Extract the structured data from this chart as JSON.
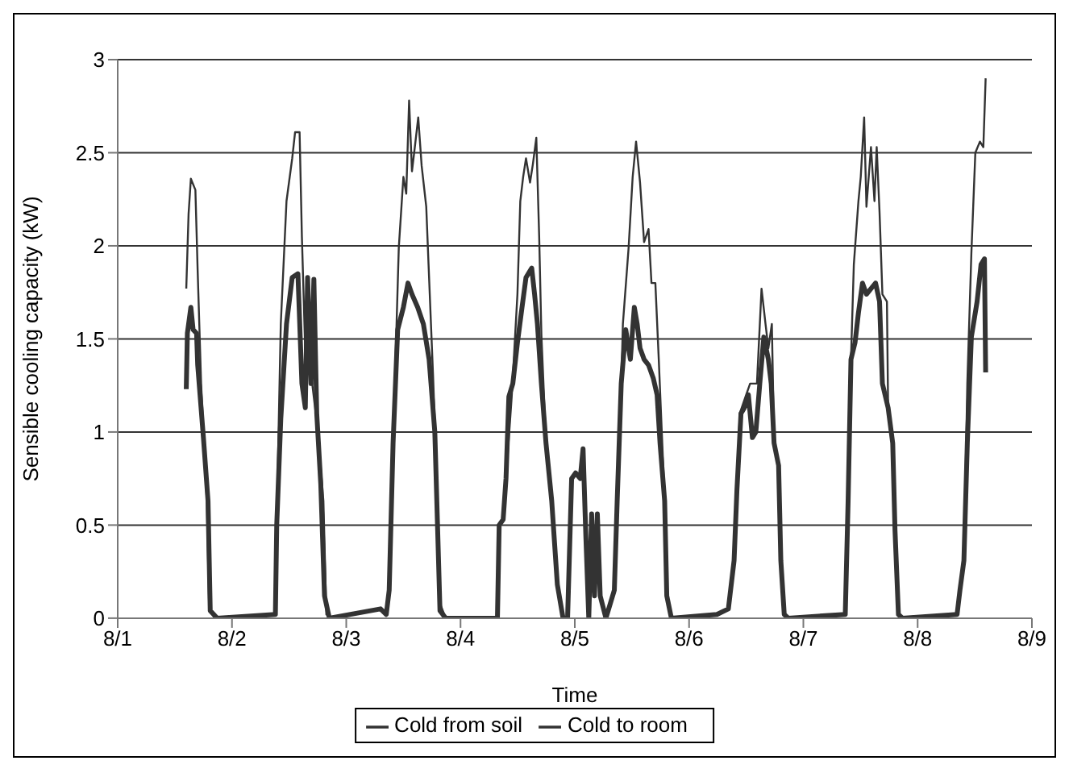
{
  "chart_data": {
    "type": "line",
    "xlabel": "Time",
    "ylabel": "Sensible cooling capacity (kW)",
    "xlim": [
      "--08-01",
      "--08-09"
    ],
    "xticks": [
      {
        "value": "--08-01",
        "label": "8/1"
      },
      {
        "value": "--08-02",
        "label": "8/2"
      },
      {
        "value": "--08-03",
        "label": "8/3"
      },
      {
        "value": "--08-04",
        "label": "8/4"
      },
      {
        "value": "--08-05",
        "label": "8/5"
      },
      {
        "value": "--08-06",
        "label": "8/6"
      },
      {
        "value": "--08-07",
        "label": "8/7"
      },
      {
        "value": "--08-08",
        "label": "8/8"
      },
      {
        "value": "--08-09",
        "label": "8/9"
      }
    ],
    "ylim": [
      0,
      3
    ],
    "yticks": [
      0,
      0.5,
      1,
      1.5,
      2,
      2.5,
      3
    ],
    "grid": "y",
    "legend": "bottom",
    "marker": "none",
    "line_style": "solid",
    "series": [
      {
        "name": "Cold from soil",
        "color": "#333333",
        "x": [
          "--08-01T14:24",
          "--08-01T14:53",
          "--08-01T15:22",
          "--08-01T16:19",
          "--08-01T16:48",
          "--08-01T17:31",
          "--08-01T18:43",
          "--08-01T19:12",
          "--08-01T20:24",
          "--08-02T09:07",
          "--08-02T09:24",
          "--08-02T10:15",
          "--08-02T11:27",
          "--08-02T12:39",
          "--08-02T13:15",
          "--08-02T14:12",
          "--08-02T14:41",
          "--08-02T15:24",
          "--08-02T16:51",
          "--08-02T18:03",
          "--08-02T19:12",
          "--08-02T19:49",
          "--08-02T21:01",
          "--08-03T07:12",
          "--08-03T08:24",
          "--08-03T09:01",
          "--08-03T10:12",
          "--08-03T11:02",
          "--08-03T12:00",
          "--08-03T12:36",
          "--08-03T13:12",
          "--08-03T13:48",
          "--08-03T14:24",
          "--08-03T15:07",
          "--08-03T15:50",
          "--08-03T16:48",
          "--08-03T17:17",
          "--08-03T18:14",
          "--08-03T18:58",
          "--08-03T19:41",
          "--08-03T20:53",
          "--08-04T07:45",
          "--08-04T08:07",
          "--08-04T08:57",
          "--08-04T10:45",
          "--08-04T11:57",
          "--08-04T12:33",
          "--08-04T13:09",
          "--08-04T13:45",
          "--08-04T14:36",
          "--08-04T15:12",
          "--08-04T15:55",
          "--08-04T16:31",
          "--08-04T16:59",
          "--08-04T17:57",
          "--08-04T19:09",
          "--08-04T20:20",
          "--08-04T21:32",
          "--08-04T22:29",
          "--08-04T23:20",
          "--08-05T00:10",
          "--08-05T01:08",
          "--08-05T01:44",
          "--08-05T02:20",
          "--08-05T02:56",
          "--08-05T03:32",
          "--08-05T04:08",
          "--08-05T04:44",
          "--08-05T05:20",
          "--08-05T06:32",
          "--08-05T08:18",
          "--08-05T08:54",
          "--08-05T09:45",
          "--08-05T10:06",
          "--08-05T11:18",
          "--08-05T12:09",
          "--08-05T12:52",
          "--08-05T13:42",
          "--08-05T14:33",
          "--08-05T15:29",
          "--08-05T16:06",
          "--08-05T16:55",
          "--08-05T17:38",
          "--08-05T18:52",
          "--08-05T19:19",
          "--08-05T20:17",
          "--08-06T05:51",
          "--08-06T08:15",
          "--08-06T09:27",
          "--08-06T10:03",
          "--08-06T10:39",
          "--08-06T11:51",
          "--08-06T12:49",
          "--08-06T14:15",
          "--08-06T15:13",
          "--08-06T16:03",
          "--08-06T16:39",
          "--08-06T17:23",
          "--08-06T17:51",
          "--08-06T18:48",
          "--08-06T19:16",
          "--08-06T19:59",
          "--08-06T20:50",
          "--08-07T08:48",
          "--08-07T09:24",
          "--08-07T10:00",
          "--08-07T10:36",
          "--08-07T11:34",
          "--08-07T12:03",
          "--08-07T12:46",
          "--08-07T13:15",
          "--08-07T14:12",
          "--08-07T14:56",
          "--08-07T15:24",
          "--08-07T16:00",
          "--08-07T16:36",
          "--08-07T17:33",
          "--08-07T17:48",
          "--08-07T18:46",
          "--08-07T19:15",
          "--08-07T19:58",
          "--08-07T20:48",
          "--08-08T08:17",
          "--08-08T08:53",
          "--08-08T09:43",
          "--08-08T10:26",
          "--08-08T11:17",
          "--08-08T12:07",
          "--08-08T13:05",
          "--08-08T13:48",
          "--08-08T14:17"
        ],
        "values": [
          1.77,
          2.17,
          2.36,
          2.3,
          1.86,
          1.26,
          0.63,
          0.05,
          0,
          0.02,
          0.53,
          1.58,
          2.24,
          2.47,
          2.61,
          2.61,
          2.05,
          1.42,
          1.26,
          1.0,
          0.63,
          0.02,
          0,
          0.05,
          0.02,
          0.18,
          1.26,
          1.99,
          2.37,
          2.28,
          2.78,
          2.4,
          2.53,
          2.69,
          2.43,
          2.21,
          1.9,
          1.3,
          0.78,
          0.08,
          0,
          0,
          0.5,
          0.53,
          1.19,
          1.74,
          2.24,
          2.37,
          2.47,
          2.34,
          2.44,
          2.58,
          2.05,
          1.52,
          0.94,
          0.63,
          0.18,
          0,
          0,
          0.75,
          0.78,
          0.75,
          0.91,
          0.43,
          0,
          0.56,
          0.12,
          0.56,
          0.12,
          0,
          0.15,
          0.63,
          1.26,
          1.58,
          1.99,
          2.37,
          2.56,
          2.34,
          2.02,
          2.09,
          1.8,
          1.8,
          1.39,
          0.63,
          0.12,
          0,
          0.02,
          0.05,
          0.31,
          0.69,
          1.1,
          1.19,
          1.26,
          1.26,
          1.77,
          1.58,
          1.45,
          1.58,
          0.94,
          0.82,
          0.31,
          0.02,
          0,
          0.02,
          0.63,
          1.39,
          1.9,
          2.24,
          2.37,
          2.69,
          2.21,
          2.53,
          2.24,
          2.53,
          2.18,
          1.74,
          1.7,
          1.13,
          0.94,
          0.47,
          0.02,
          0,
          0.02,
          0.15,
          0.31,
          1.26,
          1.96,
          2.5,
          2.56,
          2.53,
          2.9
        ]
      },
      {
        "name": "Cold to room",
        "color": "#333333",
        "x": [
          "--08-01T14:24",
          "--08-01T14:38",
          "--08-01T15:22",
          "--08-01T15:50",
          "--08-01T16:34",
          "--08-01T16:48",
          "--08-01T18:00",
          "--08-01T18:58",
          "--08-01T19:26",
          "--08-01T20:53",
          "--08-02T09:07",
          "--08-02T09:24",
          "--08-02T10:15",
          "--08-02T11:27",
          "--08-02T12:39",
          "--08-02T13:51",
          "--08-02T14:41",
          "--08-02T15:24",
          "--08-02T15:53",
          "--08-02T16:36",
          "--08-02T17:12",
          "--08-02T17:48",
          "--08-02T18:39",
          "--08-02T19:26",
          "--08-02T20:27",
          "--08-03T07:12",
          "--08-03T08:24",
          "--08-03T09:01",
          "--08-03T09:50",
          "--08-03T10:48",
          "--08-03T12:00",
          "--08-03T12:58",
          "--08-03T13:48",
          "--08-03T15:00",
          "--08-03T16:12",
          "--08-03T17:24",
          "--08-03T18:36",
          "--08-03T19:12",
          "--08-03T19:41",
          "--08-03T20:53",
          "--08-04T07:45",
          "--08-04T08:07",
          "--08-04T08:57",
          "--08-04T09:33",
          "--08-04T10:09",
          "--08-04T10:59",
          "--08-04T11:57",
          "--08-04T12:55",
          "--08-04T13:45",
          "--08-04T14:57",
          "--08-04T15:33",
          "--08-04T16:09",
          "--08-04T16:59",
          "--08-04T17:57",
          "--08-04T19:09",
          "--08-04T20:20",
          "--08-04T21:32",
          "--08-04T22:29",
          "--08-04T23:20",
          "--08-05T00:10",
          "--08-05T01:08",
          "--08-05T01:44",
          "--08-05T02:20",
          "--08-05T02:56",
          "--08-05T03:32",
          "--08-05T04:08",
          "--08-05T04:44",
          "--08-05T05:20",
          "--08-05T06:32",
          "--08-05T08:18",
          "--08-05T08:54",
          "--08-05T09:45",
          "--08-05T10:42",
          "--08-05T11:40",
          "--08-05T12:30",
          "--08-05T13:06",
          "--08-05T13:42",
          "--08-05T14:33",
          "--08-05T15:29",
          "--08-05T16:28",
          "--08-05T17:17",
          "--08-05T17:54",
          "--08-05T18:52",
          "--08-05T19:19",
          "--08-05T20:17",
          "--08-06T05:51",
          "--08-06T08:15",
          "--08-06T09:27",
          "--08-06T10:03",
          "--08-06T10:54",
          "--08-06T11:37",
          "--08-06T12:27",
          "--08-06T13:18",
          "--08-06T14:01",
          "--08-06T14:51",
          "--08-06T15:42",
          "--08-06T16:39",
          "--08-06T17:15",
          "--08-06T17:51",
          "--08-06T18:48",
          "--08-06T19:16",
          "--08-06T19:59",
          "--08-06T20:50",
          "--08-07T08:48",
          "--08-07T09:24",
          "--08-07T10:00",
          "--08-07T10:51",
          "--08-07T11:34",
          "--08-07T12:25",
          "--08-07T13:15",
          "--08-07T14:12",
          "--08-07T15:10",
          "--08-07T16:00",
          "--08-07T16:36",
          "--08-07T17:48",
          "--08-07T18:46",
          "--08-07T19:15",
          "--08-07T19:58",
          "--08-07T20:48",
          "--08-08T08:17",
          "--08-08T08:53",
          "--08-08T09:43",
          "--08-08T10:26",
          "--08-08T11:17",
          "--08-08T12:29",
          "--08-08T13:19",
          "--08-08T14:02",
          "--08-08T14:17"
        ],
        "values": [
          1.23,
          1.53,
          1.67,
          1.55,
          1.53,
          1.36,
          0.97,
          0.63,
          0.04,
          0,
          0.02,
          0.5,
          1.07,
          1.58,
          1.83,
          1.85,
          1.26,
          1.13,
          1.83,
          1.26,
          1.82,
          1.1,
          0.72,
          0.12,
          0,
          0.05,
          0.02,
          0.15,
          0.94,
          1.55,
          1.67,
          1.8,
          1.74,
          1.67,
          1.58,
          1.39,
          1.0,
          0.47,
          0.04,
          0,
          0,
          0.5,
          0.53,
          0.75,
          1.19,
          1.26,
          1.48,
          1.67,
          1.83,
          1.88,
          1.74,
          1.58,
          1.26,
          0.94,
          0.63,
          0.18,
          0,
          0,
          0.75,
          0.78,
          0.75,
          0.91,
          0.43,
          0,
          0.56,
          0.12,
          0.56,
          0.12,
          0,
          0.15,
          0.63,
          1.26,
          1.55,
          1.39,
          1.67,
          1.58,
          1.45,
          1.39,
          1.36,
          1.29,
          1.2,
          0.94,
          0.63,
          0.12,
          0,
          0.02,
          0.05,
          0.31,
          0.69,
          1.1,
          1.13,
          1.2,
          0.97,
          1.0,
          1.26,
          1.51,
          1.39,
          1.26,
          0.94,
          0.82,
          0.31,
          0.02,
          0,
          0.02,
          0.63,
          1.39,
          1.48,
          1.64,
          1.8,
          1.74,
          1.77,
          1.8,
          1.7,
          1.26,
          1.13,
          0.94,
          0.47,
          0.02,
          0,
          0.02,
          0.15,
          0.31,
          0.94,
          1.51,
          1.7,
          1.9,
          1.93,
          1.32
        ]
      }
    ]
  }
}
